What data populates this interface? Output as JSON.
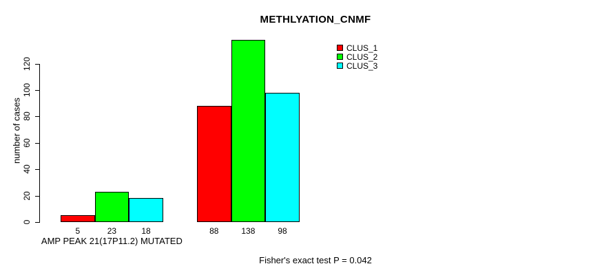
{
  "figure": {
    "title": "METHLYATION_CNMF",
    "y_axis_label": "number of cases",
    "footer_note": "Fisher's exact test P = 0.042"
  },
  "legend": {
    "position": "top-right",
    "items": [
      {
        "label": "CLUS_1",
        "color": "#FF0000"
      },
      {
        "label": "CLUS_2",
        "color": "#00FF00"
      },
      {
        "label": "CLUS_3",
        "color": "#00FFFF"
      }
    ]
  },
  "chart_data": {
    "type": "bar",
    "title": "METHLYATION_CNMF",
    "xlabel": "",
    "ylabel": "number of cases",
    "categories": [
      "AMP PEAK 21(17P11.2) MUTATED",
      ""
    ],
    "series": [
      {
        "name": "CLUS_1",
        "color": "#FF0000",
        "values": [
          5,
          88
        ]
      },
      {
        "name": "CLUS_2",
        "color": "#00FF00",
        "values": [
          23,
          138
        ]
      },
      {
        "name": "CLUS_3",
        "color": "#00FFFF",
        "values": [
          18,
          98
        ]
      }
    ],
    "y_ticks": [
      0,
      20,
      40,
      60,
      80,
      100,
      120
    ],
    "ylim": [
      0,
      138
    ],
    "grid": false,
    "show_values_below_bars": true,
    "legend_position": "top-right",
    "annotation": "Fisher's exact test P = 0.042"
  }
}
